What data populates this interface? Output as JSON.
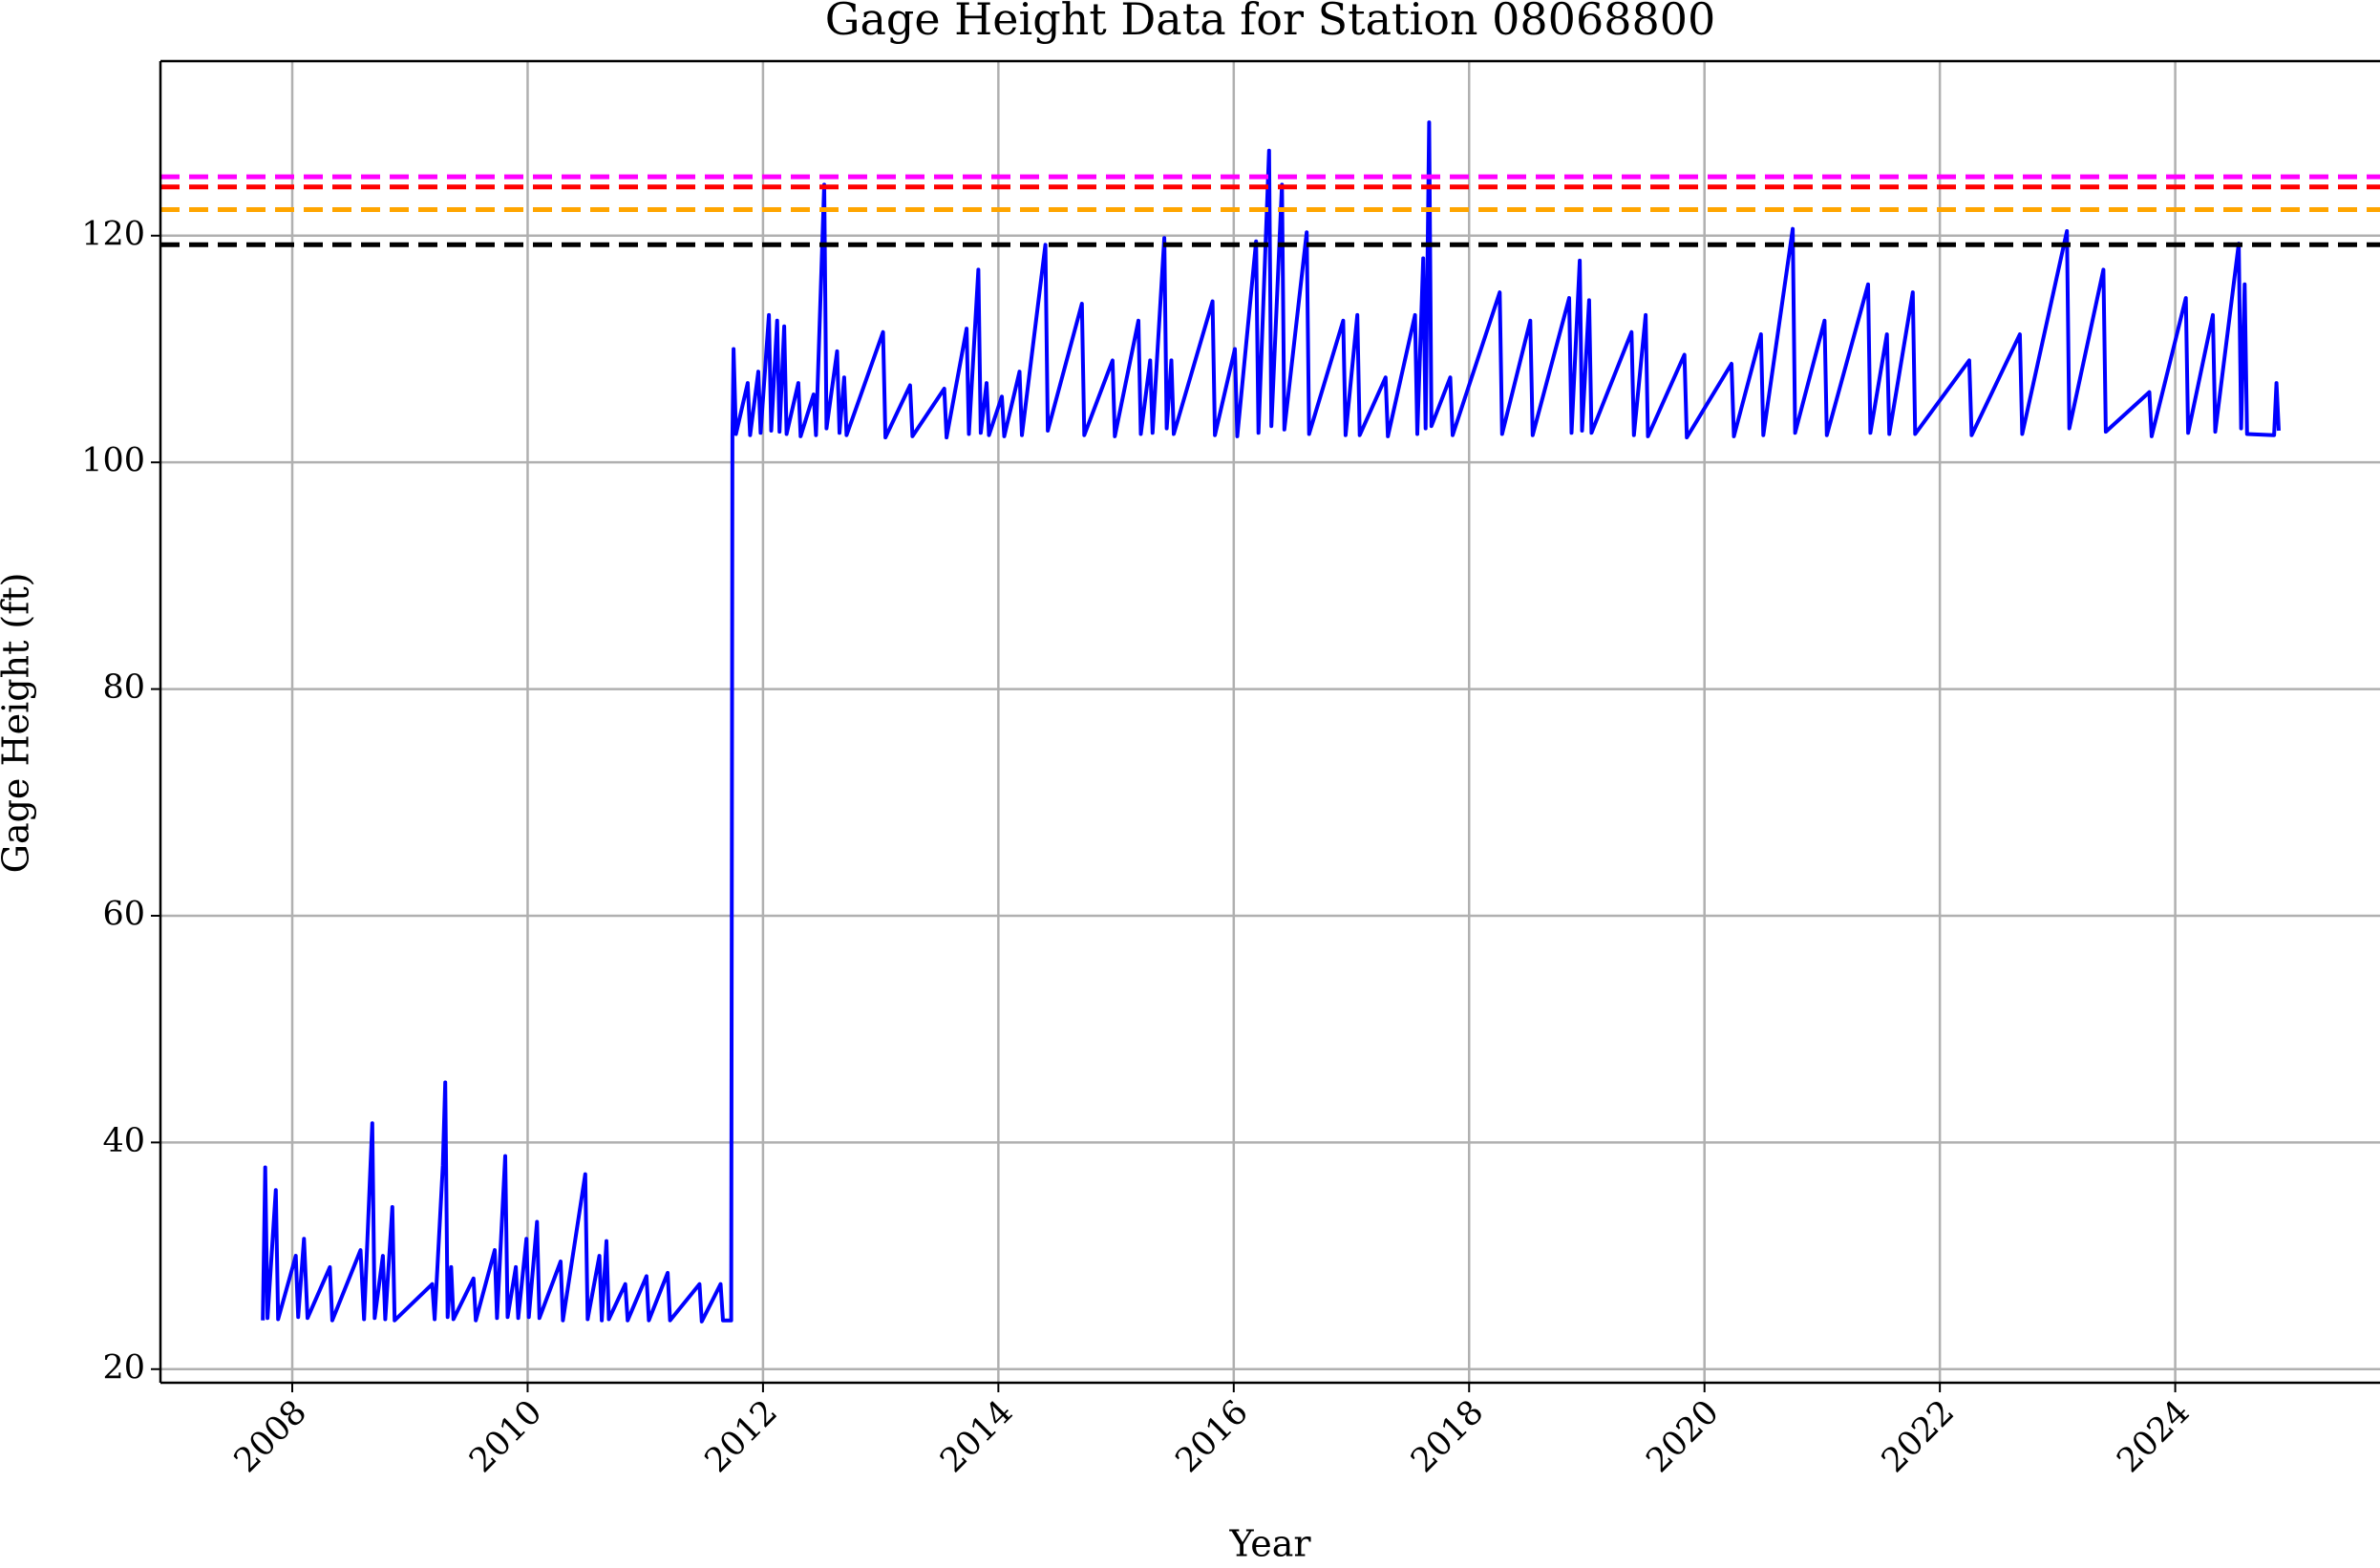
{
  "chart_data": {
    "type": "line",
    "title": "Gage Height Data for Station 08068800",
    "xlabel": "Year",
    "ylabel": "Gage Height (ft)",
    "xlim": [
      2006.88,
      2025.74
    ],
    "ylim": [
      18.8,
      135.4
    ],
    "xticks": [
      2008,
      2010,
      2012,
      2014,
      2016,
      2018,
      2020,
      2022,
      2024
    ],
    "yticks": [
      20,
      40,
      60,
      80,
      100,
      120
    ],
    "grid": true,
    "color": "#0000ff",
    "hlines": [
      {
        "value": 125.2,
        "color": "#ff00ff"
      },
      {
        "value": 124.3,
        "color": "#ff0000"
      },
      {
        "value": 122.3,
        "color": "#ffa500"
      },
      {
        "value": 119.2,
        "color": "#000000"
      }
    ],
    "x": [
      2007.75,
      2007.77,
      2007.79,
      2007.86,
      2007.88,
      2008.03,
      2008.05,
      2008.1,
      2008.13,
      2008.32,
      2008.34,
      2008.58,
      2008.61,
      2008.68,
      2008.7,
      2008.77,
      2008.79,
      2008.85,
      2008.87,
      2009.19,
      2009.21,
      2009.28,
      2009.3,
      2009.32,
      2009.35,
      2009.37,
      2009.54,
      2009.56,
      2009.72,
      2009.74,
      2009.81,
      2009.83,
      2009.9,
      2009.92,
      2009.99,
      2010.01,
      2010.08,
      2010.1,
      2010.28,
      2010.3,
      2010.49,
      2010.51,
      2010.61,
      2010.63,
      2010.67,
      2010.69,
      2010.83,
      2010.85,
      2011.01,
      2011.03,
      2011.19,
      2011.21,
      2011.46,
      2011.48,
      2011.64,
      2011.66,
      2011.73,
      2011.74,
      2011.75,
      2011.77,
      2011.87,
      2011.89,
      2011.96,
      2011.98,
      2012.05,
      2012.07,
      2012.12,
      2012.14,
      2012.18,
      2012.2,
      2012.3,
      2012.32,
      2012.43,
      2012.45,
      2012.52,
      2012.54,
      2012.63,
      2012.65,
      2012.69,
      2012.71,
      2013.02,
      2013.04,
      2013.25,
      2013.27,
      2013.54,
      2013.56,
      2013.73,
      2013.75,
      2013.83,
      2013.85,
      2013.9,
      2013.92,
      2014.03,
      2014.05,
      2014.18,
      2014.2,
      2014.4,
      2014.42,
      2014.71,
      2014.73,
      2014.97,
      2014.99,
      2015.19,
      2015.21,
      2015.29,
      2015.31,
      2015.41,
      2015.43,
      2015.47,
      2015.49,
      2015.82,
      2015.84,
      2016.01,
      2016.03,
      2016.19,
      2016.21,
      2016.3,
      2016.32,
      2016.41,
      2016.43,
      2016.62,
      2016.64,
      2016.93,
      2016.95,
      2017.05,
      2017.07,
      2017.29,
      2017.31,
      2017.54,
      2017.56,
      2017.61,
      2017.63,
      2017.66,
      2017.68,
      2017.84,
      2017.86,
      2018.26,
      2018.28,
      2018.52,
      2018.54,
      2018.85,
      2018.87,
      2018.94,
      2018.96,
      2019.02,
      2019.04,
      2019.38,
      2019.4,
      2019.5,
      2019.52,
      2019.83,
      2019.85,
      2020.23,
      2020.25,
      2020.48,
      2020.5,
      2020.75,
      2020.77,
      2021.02,
      2021.04,
      2021.39,
      2021.41,
      2021.55,
      2021.57,
      2021.77,
      2021.79,
      2022.25,
      2022.27,
      2022.68,
      2022.7,
      2023.08,
      2023.1,
      2023.39,
      2023.41,
      2023.78,
      2023.8,
      2024.09,
      2024.11,
      2024.32,
      2024.34,
      2024.54,
      2024.56,
      2024.59,
      2024.61,
      2024.84,
      2024.86,
      2024.88
    ],
    "values": [
      24.3,
      37.8,
      24.5,
      35.8,
      24.4,
      30,
      24.6,
      31.5,
      24.5,
      29,
      24.3,
      30.5,
      24.4,
      41.7,
      24.5,
      30,
      24.4,
      34.3,
      24.3,
      27.5,
      24.4,
      38,
      45.3,
      24.6,
      29,
      24.4,
      28,
      24.3,
      30.5,
      24.5,
      38.8,
      24.6,
      29,
      24.5,
      31.5,
      24.6,
      33,
      24.5,
      29.5,
      24.3,
      37.2,
      24.4,
      30,
      24.3,
      31.3,
      24.4,
      27.5,
      24.3,
      28.2,
      24.3,
      28.5,
      24.3,
      27.5,
      24.2,
      27.5,
      24.3,
      24.3,
      102.3,
      110,
      102.5,
      107,
      102.4,
      108,
      102.6,
      113,
      102.8,
      112.5,
      102.7,
      112,
      102.5,
      107,
      102.3,
      106,
      102.4,
      124.5,
      103,
      109.8,
      102.6,
      107.5,
      102.4,
      111.5,
      102.2,
      106.8,
      102.3,
      106.5,
      102.2,
      111.8,
      102.5,
      117,
      102.6,
      107,
      102.4,
      105.8,
      102.3,
      108,
      102.4,
      119.2,
      102.8,
      114,
      102.4,
      109,
      102.3,
      112.5,
      102.5,
      109,
      102.6,
      119.8,
      103,
      109,
      102.5,
      114.2,
      102.4,
      110,
      102.3,
      119.5,
      102.6,
      127.5,
      103.2,
      124.5,
      102.9,
      120.3,
      102.5,
      112.5,
      102.4,
      113,
      102.4,
      107.5,
      102.3,
      113,
      102.5,
      118,
      103,
      130,
      103.2,
      107.5,
      102.4,
      115,
      102.5,
      112.5,
      102.4,
      114.5,
      102.6,
      117.8,
      102.8,
      114.3,
      102.6,
      111.5,
      102.4,
      113,
      102.3,
      109.5,
      102.2,
      108.7,
      102.3,
      111.3,
      102.4,
      120.6,
      102.6,
      112.5,
      102.4,
      115.7,
      102.6,
      111.3,
      102.5,
      115,
      102.5,
      109,
      102.4,
      111.3,
      102.5,
      120.4,
      103,
      117,
      102.7,
      106.2,
      102.3,
      114.5,
      102.6,
      113,
      102.7,
      119.3,
      103,
      115.7,
      102.5,
      102.4,
      107,
      102.8
    ]
  }
}
